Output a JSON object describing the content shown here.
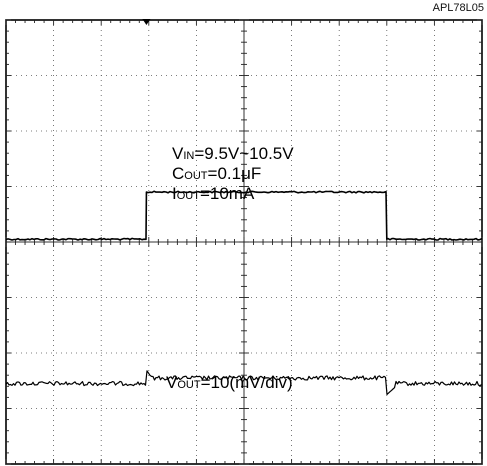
{
  "part_id": "APL78L05",
  "chart_data": {
    "type": "line",
    "title": "",
    "xlabel": "",
    "ylabel": "",
    "x_divisions": 10,
    "y_divisions": 8,
    "grid": "dotted",
    "annotations": {
      "vin": {
        "main": "V",
        "sub": "IN",
        "rest": "=9.5V~10.5V"
      },
      "cout": {
        "main": "C",
        "sub": "OUT",
        "rest": "=0.1μF"
      },
      "iout": {
        "main": "I",
        "sub": "OUT",
        "rest": "=10mA"
      },
      "vout": {
        "main": "V",
        "sub": "OUT",
        "rest": "=10(mV/div)"
      }
    },
    "series": [
      {
        "name": "VIN",
        "step_on_div": 2.95,
        "step_off_div": 8.0,
        "low_div": 3.95,
        "high_div": 3.1,
        "color": "#000000"
      },
      {
        "name": "VOUT",
        "baseline_div": 6.55,
        "on_level_div": 6.45,
        "off_dip_div": 6.75,
        "step_on_div": 2.95,
        "step_off_div": 8.0,
        "color": "#000000"
      }
    ]
  }
}
